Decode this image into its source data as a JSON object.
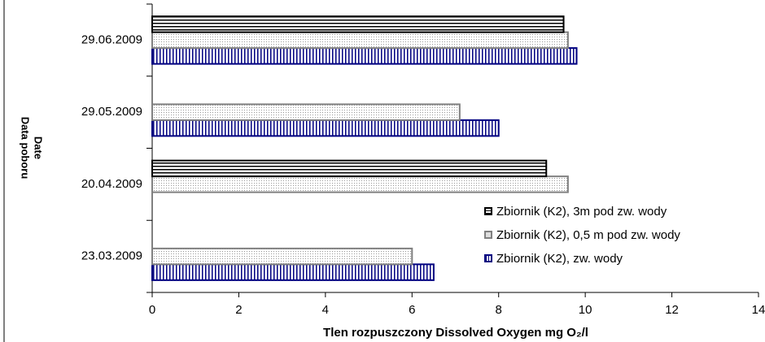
{
  "chart_data": {
    "type": "hbar",
    "x_label": "Tlen rozpuszczony Dissolved Oxygen mg O₂/l",
    "y_label": [
      "Data poboru",
      "Date"
    ],
    "categories": [
      "23.03.2009",
      "20.04.2009",
      "29.05.2009",
      "29.06.2009"
    ],
    "series": [
      {
        "name": "Zbiornik (K2), zw. wody",
        "color": "#000080",
        "pattern": "vertical-stripes",
        "values": [
          6.5,
          null,
          8.0,
          9.8
        ]
      },
      {
        "name": "Zbiornik (K2), 0,5 m pod zw. wody",
        "color": "#808080",
        "pattern": "dots",
        "values": [
          6.0,
          9.6,
          7.1,
          9.6
        ]
      },
      {
        "name": "Zbiornik (K2), 3m pod zw. wody",
        "color": "#000000",
        "pattern": "horizontal-stripes",
        "values": [
          null,
          9.1,
          null,
          9.5
        ]
      }
    ],
    "xlim": [
      0,
      14
    ],
    "xticks": [
      0,
      2,
      4,
      6,
      8,
      10,
      12,
      14
    ],
    "grid": false,
    "legend": "right"
  }
}
